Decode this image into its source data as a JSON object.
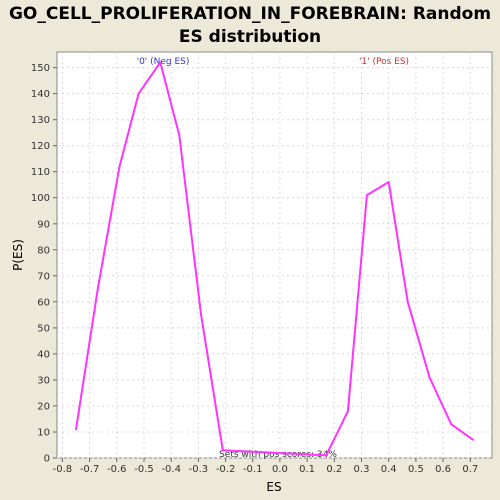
{
  "chart_data": {
    "type": "line",
    "title_line1": "GO_CELL_PROLIFERATION_IN_FOREBRAIN: Random",
    "title_line2": "ES distribution",
    "xlabel": "ES",
    "ylabel": "P(ES)",
    "xlim": [
      -0.82,
      0.78
    ],
    "ylim": [
      0,
      156
    ],
    "xticks": [
      -0.8,
      -0.7,
      -0.6,
      -0.5,
      -0.4,
      -0.3,
      -0.2,
      -0.1,
      0.0,
      0.1,
      0.2,
      0.3,
      0.4,
      0.5,
      0.6,
      0.7
    ],
    "xtick_labels": [
      "-0.8",
      "-0.7",
      "-0.6",
      "-0.5",
      "-0.4",
      "-0.3",
      "-0.2",
      "-0.1",
      "0.0",
      "0.1",
      "0.2",
      "0.3",
      "0.4",
      "0.5",
      "0.6",
      "0.7"
    ],
    "yticks": [
      0,
      10,
      20,
      30,
      40,
      50,
      60,
      70,
      80,
      90,
      100,
      110,
      120,
      130,
      140,
      150
    ],
    "grid": true,
    "series": [
      {
        "color": "#ff33ff",
        "x": [
          -0.75,
          -0.67,
          -0.59,
          -0.52,
          -0.44,
          -0.37,
          -0.29,
          -0.21,
          0.17,
          0.25,
          0.32,
          0.4,
          0.47,
          0.55,
          0.63,
          0.71
        ],
        "y": [
          11,
          65,
          112,
          140,
          152,
          124,
          55,
          3,
          1,
          18,
          101,
          106,
          60,
          31,
          13,
          7
        ]
      }
    ],
    "annotations": {
      "neg_label": "'0' (Neg ES)",
      "neg_color": "#3333cc",
      "pos_label": "'1' (Pos ES)",
      "pos_color": "#cc3333",
      "pos_scores": "Sets with pos scores: 34%"
    }
  }
}
